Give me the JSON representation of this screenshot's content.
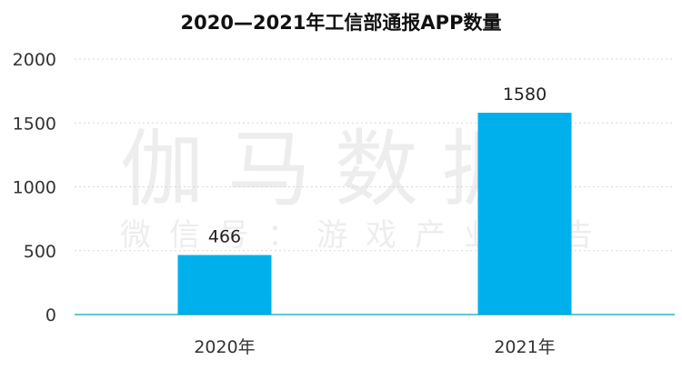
{
  "watermark": {
    "main": "伽马数据",
    "sub": "微信号：游戏产业报告"
  },
  "chart_data": {
    "type": "bar",
    "title": "2020—2021年工信部通报APP数量",
    "xlabel": "",
    "ylabel": "",
    "categories": [
      "2020年",
      "2021年"
    ],
    "values": [
      466,
      1580
    ],
    "data_labels": [
      "466",
      "1580"
    ],
    "ylim": [
      0,
      2000
    ],
    "yticks": [
      0,
      500,
      1000,
      1500,
      2000
    ],
    "ytick_labels": [
      "0",
      "500",
      "1000",
      "1500",
      "2000"
    ],
    "grid": true,
    "legend": "none",
    "bar_color": "#00b0ec",
    "axis_color": "#00a6b8"
  }
}
